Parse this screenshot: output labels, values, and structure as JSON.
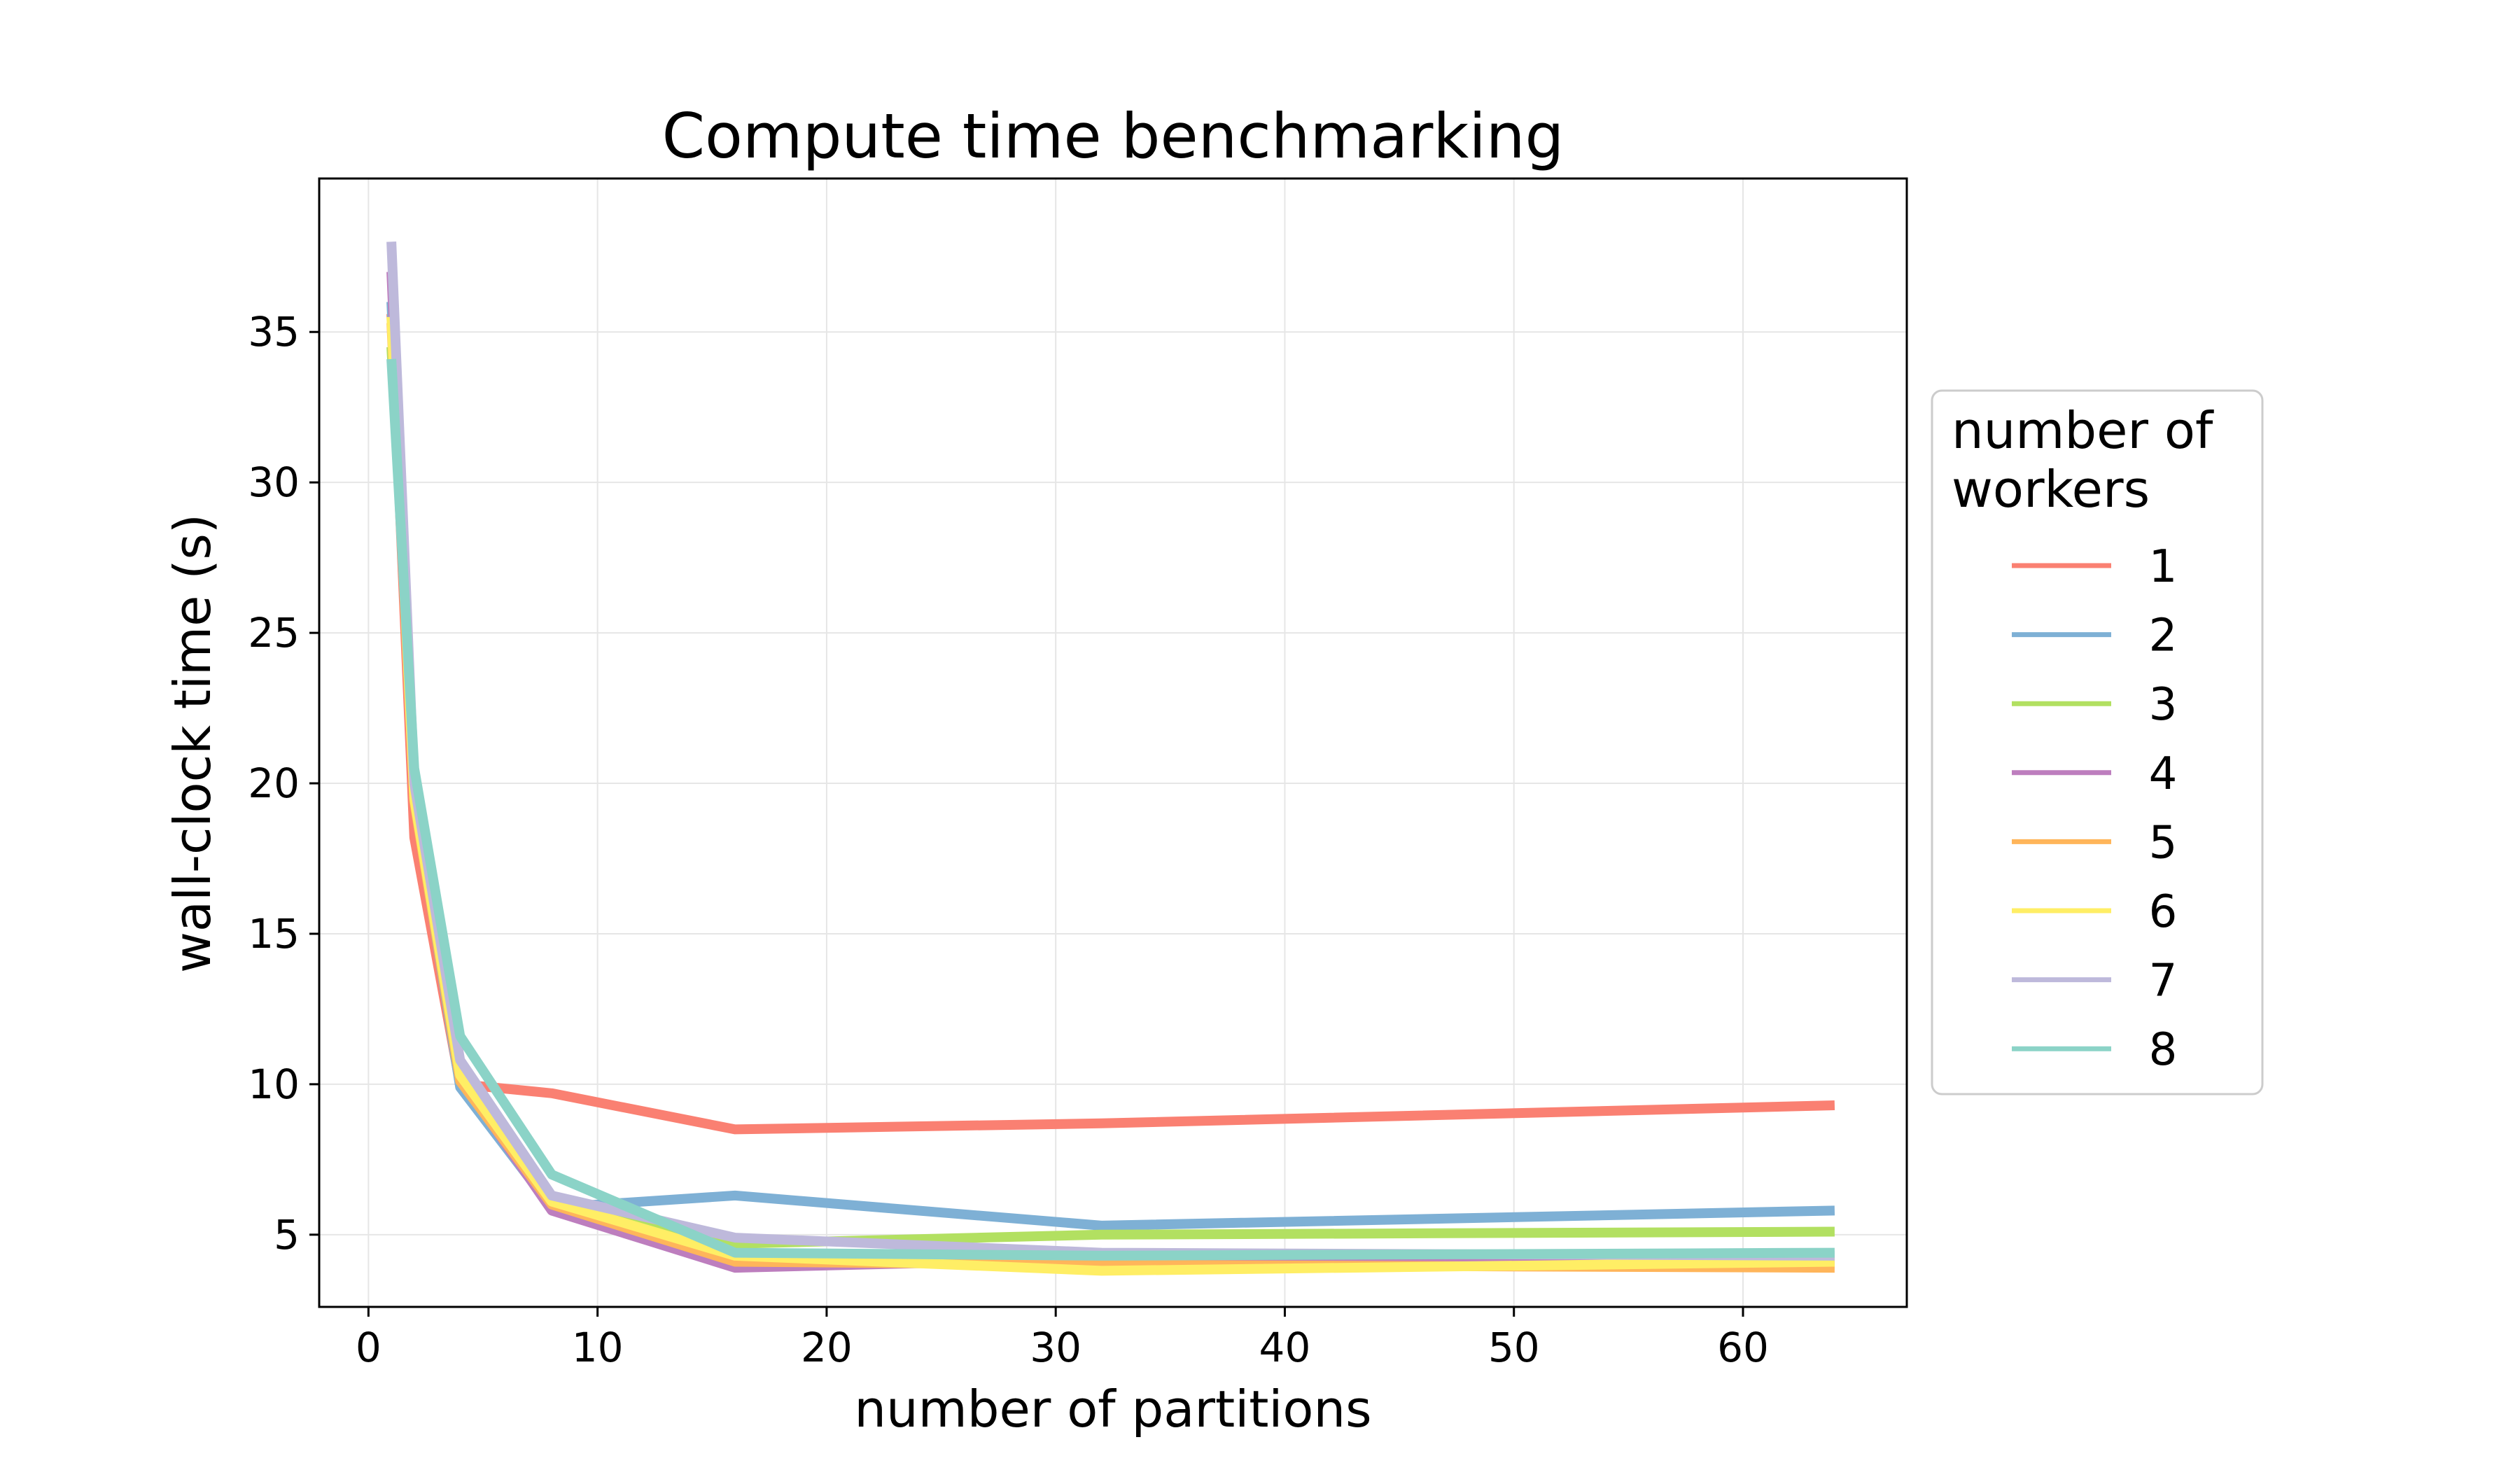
{
  "chart_data": {
    "type": "line",
    "title": "Compute time benchmarking",
    "xlabel": "number of partitions",
    "ylabel": "wall-clock time (s)",
    "xlim": [
      -2.15,
      67.15
    ],
    "ylim": [
      2.6,
      40.1
    ],
    "xticks": [
      0,
      10,
      20,
      30,
      40,
      50,
      60
    ],
    "yticks": [
      5,
      10,
      15,
      20,
      25,
      30,
      35
    ],
    "grid": true,
    "legend": {
      "title": "number of workers",
      "placement": "right, outside plot"
    },
    "x": [
      1,
      2,
      4,
      8,
      16,
      32,
      64
    ],
    "series": [
      {
        "name": "1",
        "color": "#fa8072",
        "values": [
          35.6,
          18.2,
          10.0,
          9.7,
          8.5,
          8.7,
          9.3
        ]
      },
      {
        "name": "2",
        "color": "#7eb0d5",
        "values": [
          36.0,
          19.5,
          9.9,
          5.9,
          6.3,
          5.3,
          5.8
        ]
      },
      {
        "name": "3",
        "color": "#b2e061",
        "values": [
          34.5,
          20.3,
          10.4,
          6.0,
          4.7,
          5.0,
          5.1
        ]
      },
      {
        "name": "4",
        "color": "#bd7ebe",
        "values": [
          37.0,
          19.6,
          10.2,
          5.8,
          3.9,
          4.2,
          4.1
        ]
      },
      {
        "name": "5",
        "color": "#ffb55a",
        "values": [
          35.3,
          19.4,
          10.1,
          6.0,
          4.1,
          4.0,
          3.9
        ]
      },
      {
        "name": "6",
        "color": "#ffee65",
        "values": [
          35.5,
          19.5,
          10.3,
          6.1,
          4.3,
          3.8,
          4.1
        ]
      },
      {
        "name": "7",
        "color": "#beb9db",
        "values": [
          38.0,
          20.0,
          10.8,
          6.3,
          4.9,
          4.4,
          4.3
        ]
      },
      {
        "name": "8",
        "color": "#8bd3c7",
        "values": [
          34.1,
          20.5,
          11.6,
          7.0,
          4.4,
          4.3,
          4.4
        ]
      }
    ]
  }
}
